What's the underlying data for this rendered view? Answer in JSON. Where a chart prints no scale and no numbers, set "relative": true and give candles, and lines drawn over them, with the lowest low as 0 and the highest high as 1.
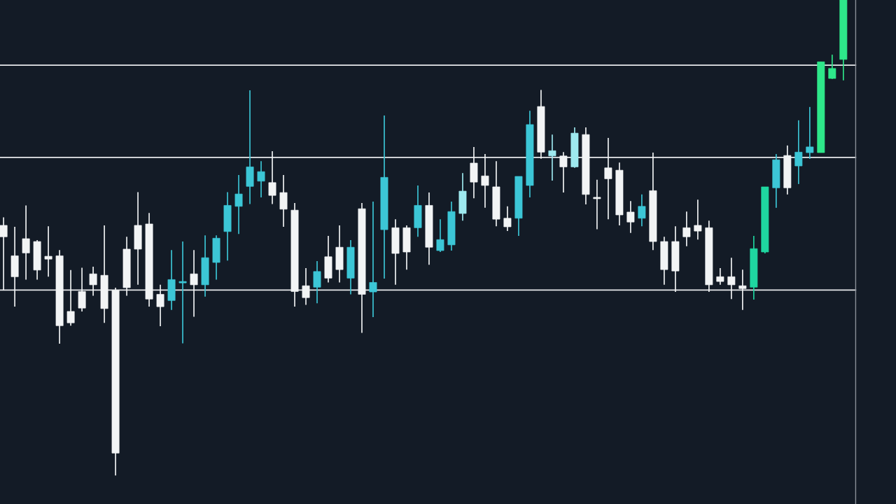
{
  "chart_data": {
    "type": "candlestick",
    "relative": true,
    "categories": [
      null,
      null,
      null,
      null,
      null,
      null,
      null,
      null,
      null,
      null,
      null,
      null,
      null,
      null,
      null,
      null,
      null,
      null,
      null,
      null,
      null,
      null,
      null,
      null,
      null,
      null,
      null,
      null,
      null,
      null,
      null,
      null,
      null,
      null,
      null,
      null,
      null,
      null,
      null,
      null,
      null,
      null,
      null,
      null,
      null,
      null,
      null,
      null,
      null,
      null,
      null,
      null,
      null,
      null,
      null,
      null,
      null,
      null,
      null,
      null,
      null,
      null,
      null,
      null,
      null,
      null,
      null,
      null,
      null,
      null,
      null,
      null,
      null,
      null,
      null,
      null
    ],
    "ohlc": [
      [
        0.526,
        0.543,
        0.389,
        0.502
      ],
      [
        0.462,
        0.523,
        0.355,
        0.418
      ],
      [
        0.498,
        0.568,
        0.412,
        0.468
      ],
      [
        0.492,
        0.495,
        0.412,
        0.432
      ],
      [
        0.461,
        0.524,
        0.418,
        0.455
      ],
      [
        0.462,
        0.474,
        0.277,
        0.315
      ],
      [
        0.345,
        0.432,
        0.315,
        0.321
      ],
      [
        0.387,
        0.437,
        0.345,
        0.352
      ],
      [
        0.424,
        0.439,
        0.378,
        0.401
      ],
      [
        0.421,
        0.526,
        0.321,
        0.351
      ],
      [
        0.389,
        0.395,
        0.0,
        0.047
      ],
      [
        0.476,
        0.502,
        0.378,
        0.395
      ],
      [
        0.526,
        0.596,
        0.401,
        0.476
      ],
      [
        0.529,
        0.552,
        0.355,
        0.371
      ],
      [
        0.381,
        0.401,
        0.314,
        0.355
      ],
      [
        0.368,
        0.474,
        0.348,
        0.412
      ],
      [
        0.405,
        0.492,
        0.278,
        0.408
      ],
      [
        0.424,
        0.474,
        0.334,
        0.401
      ],
      [
        0.401,
        0.505,
        0.376,
        0.458
      ],
      [
        0.448,
        0.505,
        0.412,
        0.499
      ],
      [
        0.513,
        0.596,
        0.452,
        0.568
      ],
      [
        0.566,
        0.632,
        0.508,
        0.592
      ],
      [
        0.608,
        0.81,
        0.571,
        0.649
      ],
      [
        0.619,
        0.661,
        0.585,
        0.639
      ],
      [
        0.616,
        0.682,
        0.571,
        0.589
      ],
      [
        0.595,
        0.632,
        0.523,
        0.56
      ],
      [
        0.558,
        0.573,
        0.355,
        0.387
      ],
      [
        0.399,
        0.436,
        0.359,
        0.374
      ],
      [
        0.396,
        0.451,
        0.362,
        0.429
      ],
      [
        0.46,
        0.504,
        0.406,
        0.415
      ],
      [
        0.48,
        0.526,
        0.406,
        0.433
      ],
      [
        0.415,
        0.495,
        0.381,
        0.48
      ],
      [
        0.561,
        0.573,
        0.3,
        0.381
      ],
      [
        0.386,
        0.576,
        0.333,
        0.406
      ],
      [
        0.517,
        0.757,
        0.414,
        0.627
      ],
      [
        0.521,
        0.539,
        0.401,
        0.467
      ],
      [
        0.521,
        0.526,
        0.433,
        0.47
      ],
      [
        0.521,
        0.61,
        0.502,
        0.568
      ],
      [
        0.568,
        0.595,
        0.443,
        0.48
      ],
      [
        0.473,
        0.539,
        0.47,
        0.496
      ],
      [
        0.485,
        0.576,
        0.473,
        0.555
      ],
      [
        0.551,
        0.636,
        0.536,
        0.598
      ],
      [
        0.657,
        0.691,
        0.583,
        0.617
      ],
      [
        0.63,
        0.676,
        0.563,
        0.61
      ],
      [
        0.607,
        0.661,
        0.524,
        0.539
      ],
      [
        0.541,
        0.566,
        0.514,
        0.523
      ],
      [
        0.541,
        0.629,
        0.504,
        0.629
      ],
      [
        0.61,
        0.767,
        0.585,
        0.738
      ],
      [
        0.776,
        0.811,
        0.666,
        0.68
      ],
      [
        0.672,
        0.717,
        0.62,
        0.683
      ],
      [
        0.672,
        0.68,
        0.595,
        0.649
      ],
      [
        0.649,
        0.732,
        0.647,
        0.72
      ],
      [
        0.717,
        0.732,
        0.57,
        0.591
      ],
      [
        0.585,
        0.622,
        0.518,
        0.582
      ],
      [
        0.647,
        0.71,
        0.539,
        0.624
      ],
      [
        0.642,
        0.658,
        0.526,
        0.548
      ],
      [
        0.554,
        0.577,
        0.51,
        0.533
      ],
      [
        0.541,
        0.591,
        0.524,
        0.566
      ],
      [
        0.599,
        0.679,
        0.474,
        0.492
      ],
      [
        0.492,
        0.502,
        0.401,
        0.433
      ],
      [
        0.492,
        0.524,
        0.386,
        0.43
      ],
      [
        0.521,
        0.555,
        0.482,
        0.502
      ],
      [
        0.526,
        0.58,
        0.496,
        0.514
      ],
      [
        0.521,
        0.536,
        0.386,
        0.401
      ],
      [
        0.418,
        0.436,
        0.401,
        0.408
      ],
      [
        0.418,
        0.458,
        0.371,
        0.401
      ],
      [
        0.399,
        0.433,
        0.348,
        0.393
      ],
      [
        0.396,
        0.504,
        0.37,
        0.477
      ],
      [
        0.47,
        0.607,
        0.467,
        0.607
      ],
      [
        0.605,
        0.676,
        0.563,
        0.664
      ],
      [
        0.673,
        0.694,
        0.591,
        0.605
      ],
      [
        0.651,
        0.747,
        0.613,
        0.68
      ],
      [
        0.679,
        0.775,
        0.666,
        0.691
      ],
      [
        0.679,
        0.87,
        0.679,
        0.87
      ],
      [
        0.835,
        0.885,
        0.834,
        0.856
      ],
      [
        0.875,
        1.0,
        0.831,
        1.0
      ]
    ],
    "colors": [
      "#f2f4f5",
      "#f2f4f5",
      "#f2f4f5",
      "#f2f4f5",
      "#f2f4f5",
      "#f2f4f5",
      "#f2f4f5",
      "#f2f4f5",
      "#f2f4f5",
      "#f2f4f5",
      "#f2f4f5",
      "#f2f4f5",
      "#f2f4f5",
      "#f2f4f5",
      "#f2f4f5",
      "#3cc6d6",
      "#3cc6d6",
      "#f2f4f5",
      "#3cc6d6",
      "#3cc6d6",
      "#3cc6d6",
      "#3cc6d6",
      "#3cc6d6",
      "#3cc6d6",
      "#f2f4f5",
      "#f2f4f5",
      "#f2f4f5",
      "#f2f4f5",
      "#3cc6d6",
      "#f2f4f5",
      "#f2f4f5",
      "#3cc6d6",
      "#f2f4f5",
      "#3cc6d6",
      "#3cc6d6",
      "#f2f4f5",
      "#f2f4f5",
      "#3cc6d6",
      "#f2f4f5",
      "#3cc6d6",
      "#3cc6d6",
      "#9ee9ef",
      "#f2f4f5",
      "#f2f4f5",
      "#f2f4f5",
      "#f2f4f5",
      "#3cc6d6",
      "#3cc6d6",
      "#f2f4f5",
      "#9ee9ef",
      "#f2f4f5",
      "#9ee9ef",
      "#f2f4f5",
      "#f2f4f5",
      "#f2f4f5",
      "#f2f4f5",
      "#f2f4f5",
      "#3cc6d6",
      "#f2f4f5",
      "#f2f4f5",
      "#f2f4f5",
      "#f2f4f5",
      "#f2f4f5",
      "#f2f4f5",
      "#f2f4f5",
      "#f2f4f5",
      "#f2f4f5",
      "#1fd6a0",
      "#1fd6a0",
      "#3cc6d6",
      "#f2f4f5",
      "#3cc6d6",
      "#3cc6d6",
      "#2ee88a",
      "#2ee88a",
      "#2ee88a"
    ],
    "ref_lines": [
      {
        "axis": "y",
        "value": 0.863,
        "color": "#e8eaec"
      },
      {
        "axis": "y",
        "value": 0.669,
        "color": "#e8eaec"
      },
      {
        "axis": "y",
        "value": 0.39,
        "color": "#e8eaec"
      }
    ]
  }
}
